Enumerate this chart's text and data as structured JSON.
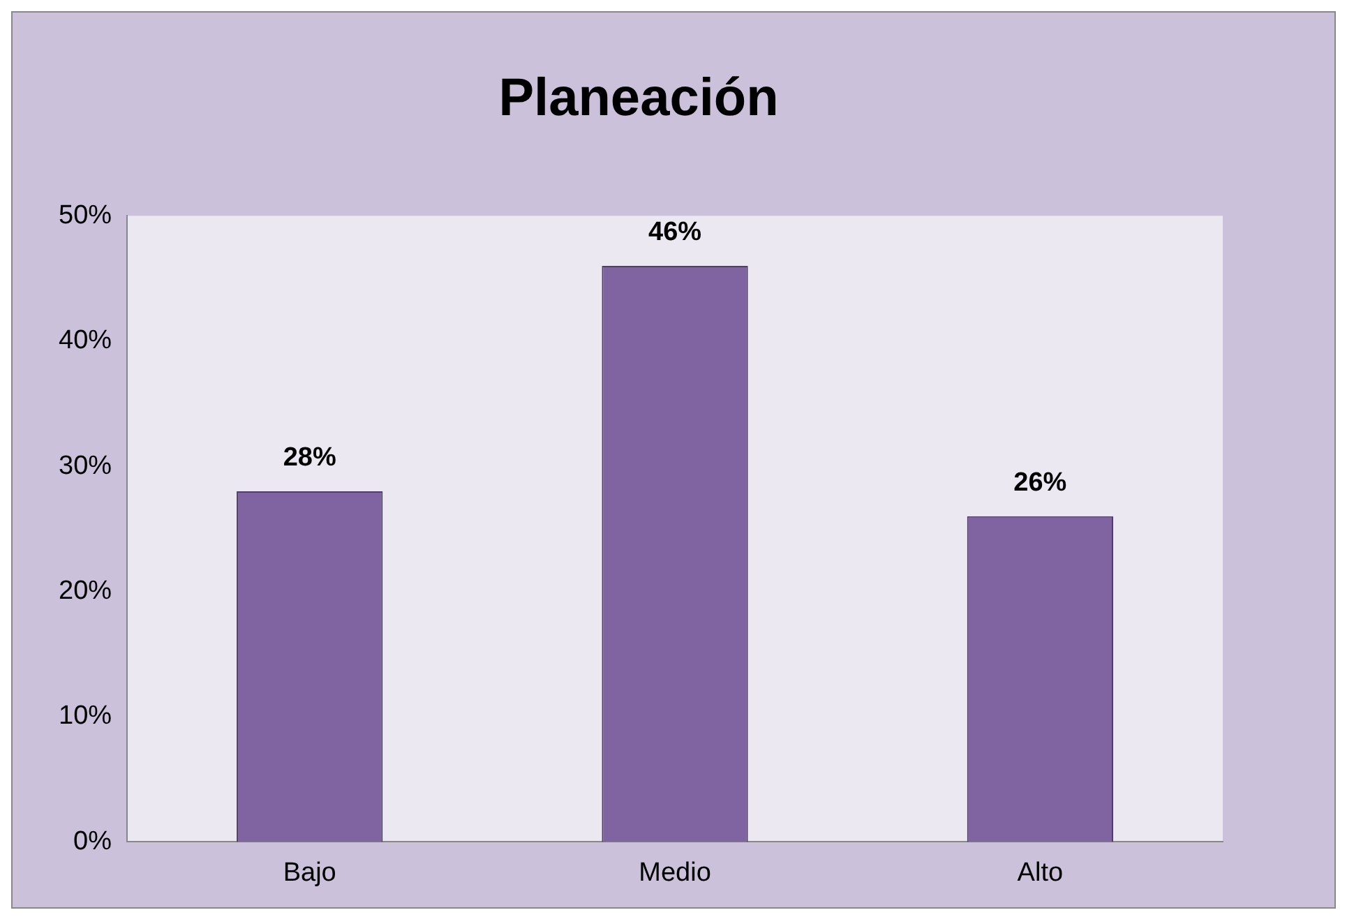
{
  "chart_data": {
    "type": "bar",
    "title": "Planeación",
    "categories": [
      "Bajo",
      "Medio",
      "Alto"
    ],
    "values": [
      28,
      46,
      26
    ],
    "color": "#8064a2",
    "ylim": [
      0,
      50
    ],
    "yticks": [
      {
        "value": 0,
        "label": "0%"
      },
      {
        "value": 10,
        "label": "10%"
      },
      {
        "value": 20,
        "label": "20%"
      },
      {
        "value": 30,
        "label": "30%"
      },
      {
        "value": 40,
        "label": "40%"
      },
      {
        "value": 50,
        "label": "50%"
      }
    ],
    "value_labels": [
      "28%",
      "46%",
      "26%"
    ],
    "grid": false,
    "legend": false
  }
}
